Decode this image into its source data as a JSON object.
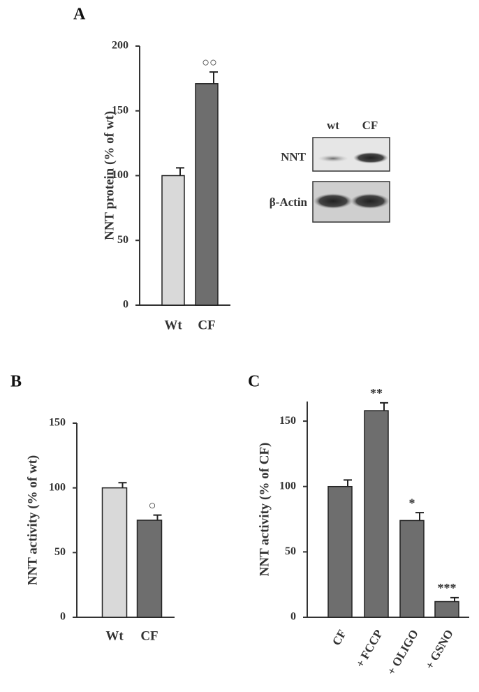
{
  "chart_data": [
    {
      "type": "bar",
      "panel": "A",
      "ylabel": "NNT  protein (% of wt)",
      "categories": [
        "Wt",
        "CF"
      ],
      "values": [
        100,
        171
      ],
      "errors": [
        6,
        9
      ],
      "colors": [
        "#d9d9d9",
        "#6e6e6e"
      ],
      "annotations": [
        null,
        "○○"
      ],
      "ylim": [
        0,
        200
      ],
      "yticks": [
        0,
        50,
        100,
        150,
        200
      ],
      "grid": false
    },
    {
      "type": "bar",
      "panel": "B",
      "ylabel": "NNT activity (% of wt)",
      "categories": [
        "Wt",
        "CF"
      ],
      "values": [
        100,
        75
      ],
      "errors": [
        4,
        4
      ],
      "colors": [
        "#d9d9d9",
        "#6e6e6e"
      ],
      "annotations": [
        null,
        "○"
      ],
      "ylim": [
        0,
        150
      ],
      "yticks": [
        0,
        50,
        100,
        150
      ],
      "grid": false
    },
    {
      "type": "bar",
      "panel": "C",
      "ylabel": "NNT activity (% of CF)",
      "categories": [
        "CF",
        "+ FCCP",
        "+ OLIGO",
        "+ GSNO"
      ],
      "values": [
        100,
        158,
        74,
        12
      ],
      "errors": [
        5,
        6,
        6,
        3
      ],
      "colors": [
        "#6e6e6e",
        "#6e6e6e",
        "#6e6e6e",
        "#6e6e6e"
      ],
      "annotations": [
        null,
        "**",
        "*",
        "***"
      ],
      "ylim": [
        0,
        165
      ],
      "yticks": [
        0,
        50,
        100,
        150
      ],
      "grid": false
    }
  ],
  "blot": {
    "columns": [
      "wt",
      "CF"
    ],
    "rows": [
      "NNT",
      "β-Actin"
    ]
  }
}
